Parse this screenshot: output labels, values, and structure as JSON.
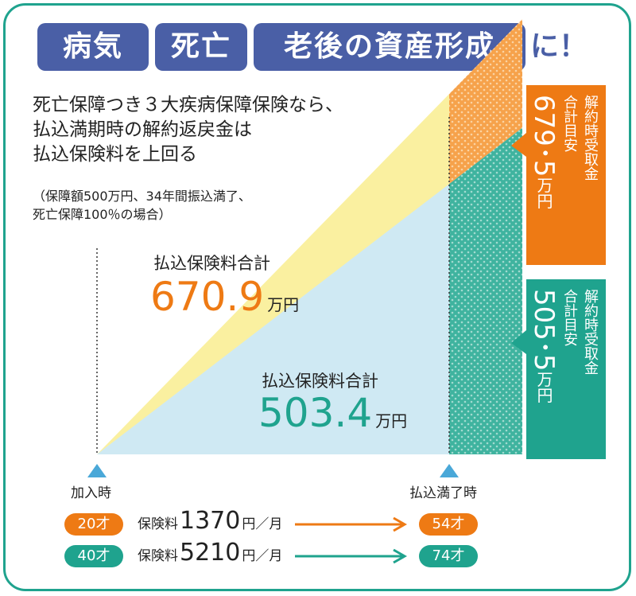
{
  "title": {
    "words": [
      "病気",
      "死亡",
      "老後の資産形成"
    ],
    "suffix": "に！"
  },
  "subtitle_lines": [
    "死亡保障つき３大疾病保障保険なら、",
    "払込満期時の解約返戻金は",
    "払込保険料を上回る"
  ],
  "note_lines": [
    "（保障額500万円、34年間振込満了、",
    "死亡保障100％の場合）"
  ],
  "colors": {
    "orange": "#ee7a14",
    "teal": "#1fa38e",
    "title_bg": "#4a5fa6",
    "yellow_area": "#faf0a0",
    "blue_area": "#cfe9f3",
    "frame": "#1fa38e"
  },
  "chart_data": {
    "type": "area",
    "x": [
      "加入時",
      "払込満了時"
    ],
    "series": [
      {
        "name": "払込保険料合計",
        "start": 0,
        "end": 670.9,
        "unit": "万円",
        "plan": "20才",
        "cash_value": 679.5
      },
      {
        "name": "払込保険料合計",
        "start": 0,
        "end": 503.4,
        "unit": "万円",
        "plan": "40才",
        "cash_value": 505.5
      }
    ],
    "annotations": [
      {
        "label": "払込保険料合計",
        "value": "670.9",
        "unit": "万円"
      },
      {
        "label": "払込保険料合計",
        "value": "503.4",
        "unit": "万円"
      }
    ]
  },
  "callouts": [
    {
      "label_line1": "解約時受取金",
      "label_line2": "合計目安",
      "value": "679･5",
      "unit": "万円"
    },
    {
      "label_line1": "解約時受取金",
      "label_line2": "合計目安",
      "value": "505･5",
      "unit": "万円"
    }
  ],
  "axis": {
    "start_label": "加入時",
    "end_label": "払込満了時"
  },
  "plans": [
    {
      "age_start": "20才",
      "prem_label": "保険料",
      "prem_value": "1370",
      "prem_unit": "円／月",
      "age_end": "54才"
    },
    {
      "age_start": "40才",
      "prem_label": "保険料",
      "prem_value": "5210",
      "prem_unit": "円／月",
      "age_end": "74才"
    }
  ]
}
